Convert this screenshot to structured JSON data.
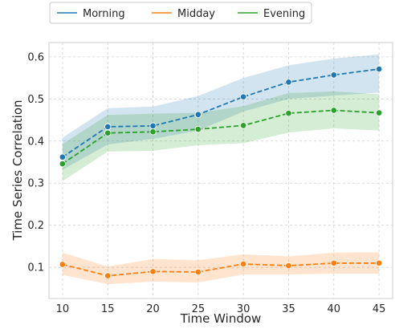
{
  "chart_data": {
    "type": "line",
    "xlabel": "Time Window",
    "ylabel": "Time Series Correlation",
    "x": [
      10,
      15,
      20,
      25,
      30,
      35,
      40,
      45
    ],
    "xticks": [
      "10",
      "15",
      "20",
      "25",
      "30",
      "35",
      "40",
      "45"
    ],
    "yticks": [
      "0.1",
      "0.2",
      "0.3",
      "0.4",
      "0.5",
      "0.6"
    ],
    "xlim": [
      8.5,
      46.5
    ],
    "ylim": [
      0.026,
      0.634
    ],
    "grid": true,
    "legend_position": "top",
    "series": [
      {
        "name": "Morning",
        "color": "#1f77b4",
        "values": [
          0.362,
          0.434,
          0.436,
          0.463,
          0.505,
          0.54,
          0.557,
          0.571
        ],
        "lower": [
          0.332,
          0.392,
          0.405,
          0.425,
          0.47,
          0.5,
          0.508,
          0.515
        ],
        "upper": [
          0.408,
          0.478,
          0.482,
          0.507,
          0.55,
          0.58,
          0.596,
          0.606
        ]
      },
      {
        "name": "Midday",
        "color": "#ff7f0e",
        "values": [
          0.107,
          0.08,
          0.09,
          0.089,
          0.108,
          0.104,
          0.11,
          0.11
        ],
        "lower": [
          0.082,
          0.06,
          0.066,
          0.064,
          0.083,
          0.083,
          0.085,
          0.085
        ],
        "upper": [
          0.135,
          0.102,
          0.12,
          0.117,
          0.131,
          0.126,
          0.135,
          0.136
        ]
      },
      {
        "name": "Evening",
        "color": "#2ca02c",
        "values": [
          0.346,
          0.419,
          0.422,
          0.428,
          0.437,
          0.466,
          0.473,
          0.467
        ],
        "lower": [
          0.305,
          0.375,
          0.377,
          0.39,
          0.395,
          0.42,
          0.43,
          0.425
        ],
        "upper": [
          0.393,
          0.462,
          0.465,
          0.467,
          0.483,
          0.514,
          0.518,
          0.511
        ]
      }
    ]
  }
}
